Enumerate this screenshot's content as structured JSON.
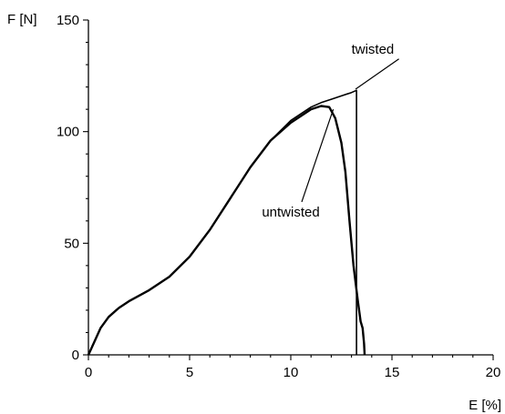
{
  "chart_data": {
    "type": "line",
    "xlabel": "E [%]",
    "ylabel": "F [N]",
    "xlim": [
      0,
      20
    ],
    "ylim": [
      0,
      150
    ],
    "x_ticks": [
      0,
      5,
      10,
      15,
      20
    ],
    "y_ticks": [
      0,
      50,
      100,
      150
    ],
    "x_ticks_minor_step": 1,
    "y_ticks_minor_step": 10,
    "grid": false,
    "series": [
      {
        "name": "twisted",
        "color": "#000000",
        "x": [
          0,
          0.3,
          0.6,
          1.0,
          1.5,
          2.0,
          3.0,
          4.0,
          5.0,
          6.0,
          7.0,
          8.0,
          9.0,
          10.0,
          11.0,
          11.5,
          12.0,
          12.5,
          13.0,
          13.25,
          13.25
        ],
        "y": [
          0,
          6,
          12,
          17,
          21,
          24,
          29,
          35,
          44,
          56,
          70,
          84,
          96,
          105,
          111,
          113,
          114.5,
          116,
          117.5,
          118.5,
          0
        ]
      },
      {
        "name": "untwisted",
        "color": "#000000",
        "x": [
          0,
          0.3,
          0.6,
          1.0,
          1.5,
          2.0,
          3.0,
          4.0,
          5.0,
          6.0,
          7.0,
          8.0,
          9.0,
          10.0,
          11.0,
          11.5,
          11.9,
          12.2,
          12.5,
          12.7,
          12.9,
          13.1,
          13.3,
          13.45,
          13.55,
          13.62,
          13.65
        ],
        "y": [
          0,
          6,
          12,
          17,
          21,
          24,
          29,
          35,
          44,
          56,
          70,
          84,
          96,
          104,
          110,
          111.5,
          111,
          106,
          95,
          82,
          60,
          40,
          25,
          15,
          12,
          5,
          0
        ]
      }
    ],
    "annotations": [
      {
        "text": "twisted",
        "x": 13.0,
        "y": 135,
        "points_to": [
          13.2,
          119
        ]
      },
      {
        "text": "untwisted",
        "x": 10.0,
        "y": 62,
        "points_to": [
          12.1,
          110
        ]
      }
    ]
  }
}
